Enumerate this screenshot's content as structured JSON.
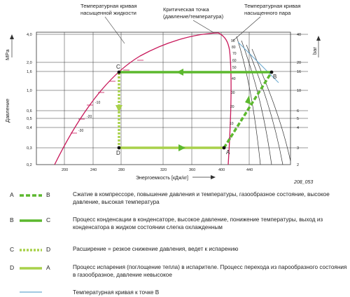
{
  "diagram": {
    "header_labels": {
      "liquid_curve": [
        "Температурная кривая",
        "насыщенной жидкости"
      ],
      "critical_point": [
        "Критическая точка",
        "(давление/температура)"
      ],
      "vapor_curve": [
        "Температурная кривая",
        "насыщенного пара"
      ]
    },
    "y_left_label": "Давление",
    "y_left_unit": "MPa",
    "y_right_unit": "bar",
    "y_left_ticks": [
      "4,0",
      "2,0",
      "1,6",
      "1,0",
      "0,6",
      "0,5",
      "0,4",
      "0,3",
      "0,2"
    ],
    "y_right_ticks": [
      "40",
      "20",
      "16",
      "10",
      "6",
      "5",
      "4",
      "3",
      "2"
    ],
    "x_label": "Энергоемкость [кДж/кг]",
    "x_ticks": [
      "200",
      "240",
      "280",
      "320",
      "360",
      "400",
      "440"
    ],
    "point_labels": {
      "a": "A",
      "b": "B",
      "c": "C",
      "d": "D"
    },
    "isotherm_labels": [
      "-30",
      "-20",
      "-10",
      "0",
      "10",
      "20",
      "30",
      "40",
      "50",
      "60",
      "70",
      "80",
      "90"
    ],
    "figure_code": "208_053",
    "colors": {
      "saturation_curve": "#c8185a",
      "process_green": "#5cb82e",
      "process_green_light": "#a8d14a",
      "isotherm_right": "#6aa9cf",
      "grid": "#333333"
    }
  },
  "legend": [
    {
      "from": "A",
      "to": "B",
      "style": "dashed-compression",
      "text": "Сжатие в компрессоре, повышение давления и температуры, газообразное состояние, высокое давление, высокая температура"
    },
    {
      "from": "B",
      "to": "C",
      "style": "solid-condensation",
      "text": "Процесс конденсации в конденсаторе, высокое давление, понижение температуры, выход из конденсатора в жидком состоянии слегка охлажденным"
    },
    {
      "from": "C",
      "to": "D",
      "style": "dotted-expansion",
      "text": "Расширение = резкое снижение давления, ведет к испарению"
    },
    {
      "from": "D",
      "to": "A",
      "style": "solid-evaporation",
      "text": "Процесс испарения (поглощение тепла) в испарителе. Процесс перехода из парообразного состояния в газообразное, давление невысокое"
    },
    {
      "from": "",
      "to": "",
      "style": "thin-blue",
      "text": "Температурная кривая к точке B"
    }
  ]
}
